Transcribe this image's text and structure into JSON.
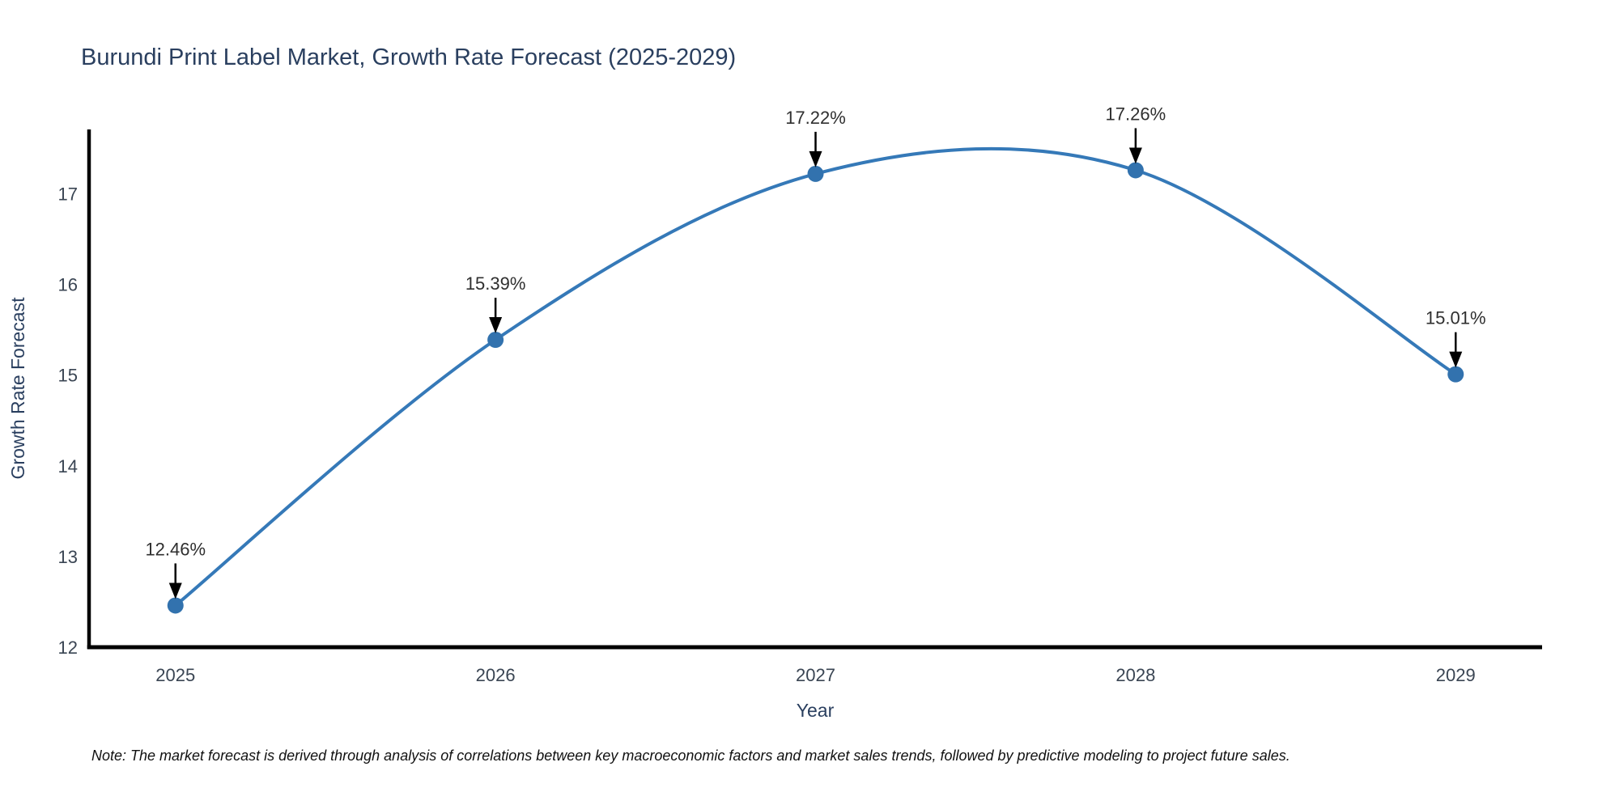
{
  "chart_data": {
    "type": "line",
    "title": "Burundi Print Label Market, Growth Rate Forecast (2025-2029)",
    "xlabel": "Year",
    "ylabel": "Growth Rate Forecast",
    "x": [
      2025,
      2026,
      2027,
      2028,
      2029
    ],
    "values": [
      12.46,
      15.39,
      17.22,
      17.26,
      15.01
    ],
    "point_labels": [
      "12.46%",
      "15.39%",
      "17.22%",
      "17.26%",
      "15.01%"
    ],
    "series_name": "Growth Rate Forecast",
    "xticks": [
      "2025",
      "2026",
      "2027",
      "2028",
      "2029"
    ],
    "yticks": [
      "12",
      "13",
      "14",
      "15",
      "16",
      "17"
    ],
    "xlim": [
      2024.73,
      2029.27
    ],
    "ylim": [
      12,
      17.71
    ],
    "grid": false,
    "legend": false,
    "line_shape": "spline",
    "annotations_have_arrows": true,
    "colors": {
      "line": "#3579b8",
      "marker": "#3272ae",
      "axis_line": "#000000",
      "arrow": "#000000",
      "title": "#2a3f5f",
      "axis_label": "#2a3f5f",
      "tick": "#3a4553",
      "annotation": "#2f2f2f",
      "background": "#ffffff"
    }
  },
  "note": "Note: The market forecast is derived through analysis of correlations between key macroeconomic factors and market sales trends, followed by predictive modeling to project future sales."
}
